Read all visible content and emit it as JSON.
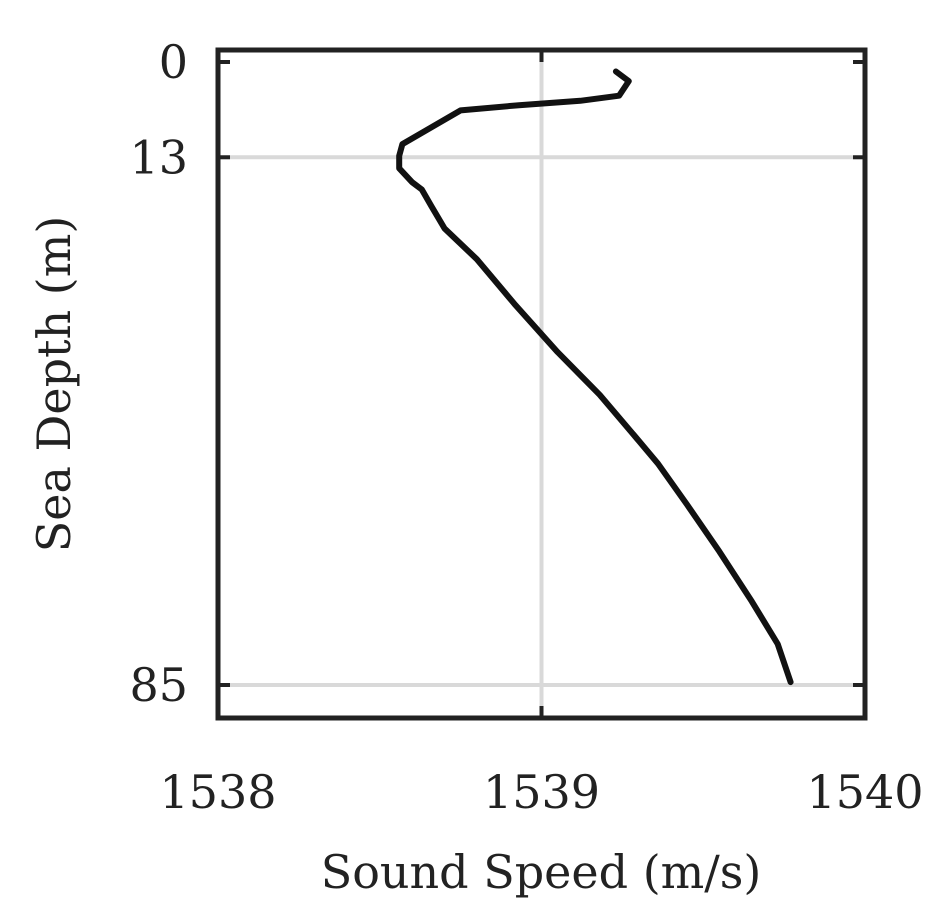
{
  "chart_data": {
    "type": "line",
    "xlabel": "Sound Speed (m/s)",
    "ylabel": "Sea Depth (m)",
    "xlim": [
      1538,
      1540
    ],
    "ylim": [
      0,
      90
    ],
    "y_inverted": true,
    "grid": true,
    "xticks": [
      1538,
      1539,
      1540
    ],
    "xtick_labels": [
      "1538",
      "1539",
      "1540"
    ],
    "yticks": [
      0,
      13,
      85
    ],
    "ytick_labels": [
      "0",
      "13",
      "85"
    ],
    "colors": {
      "line": "#111111",
      "axes": "#222222",
      "grid": "#d9d9d9"
    },
    "series": [
      {
        "x": [
          1539.23,
          1539.27,
          1539.24,
          1539.12,
          1538.93,
          1538.75,
          1538.57,
          1538.56,
          1538.56,
          1538.6,
          1538.63,
          1538.66,
          1538.7,
          1538.8,
          1538.92,
          1539.05,
          1539.18,
          1539.28,
          1539.36,
          1539.45,
          1539.55,
          1539.65,
          1539.73,
          1539.77
        ],
        "y": [
          1.3,
          2.6,
          4.6,
          5.3,
          5.9,
          6.6,
          11.2,
          12.8,
          14.5,
          16.4,
          17.4,
          19.7,
          22.7,
          26.9,
          33.2,
          39.6,
          45.4,
          50.6,
          54.8,
          60.4,
          66.8,
          73.6,
          79.4,
          84.6
        ]
      }
    ]
  }
}
